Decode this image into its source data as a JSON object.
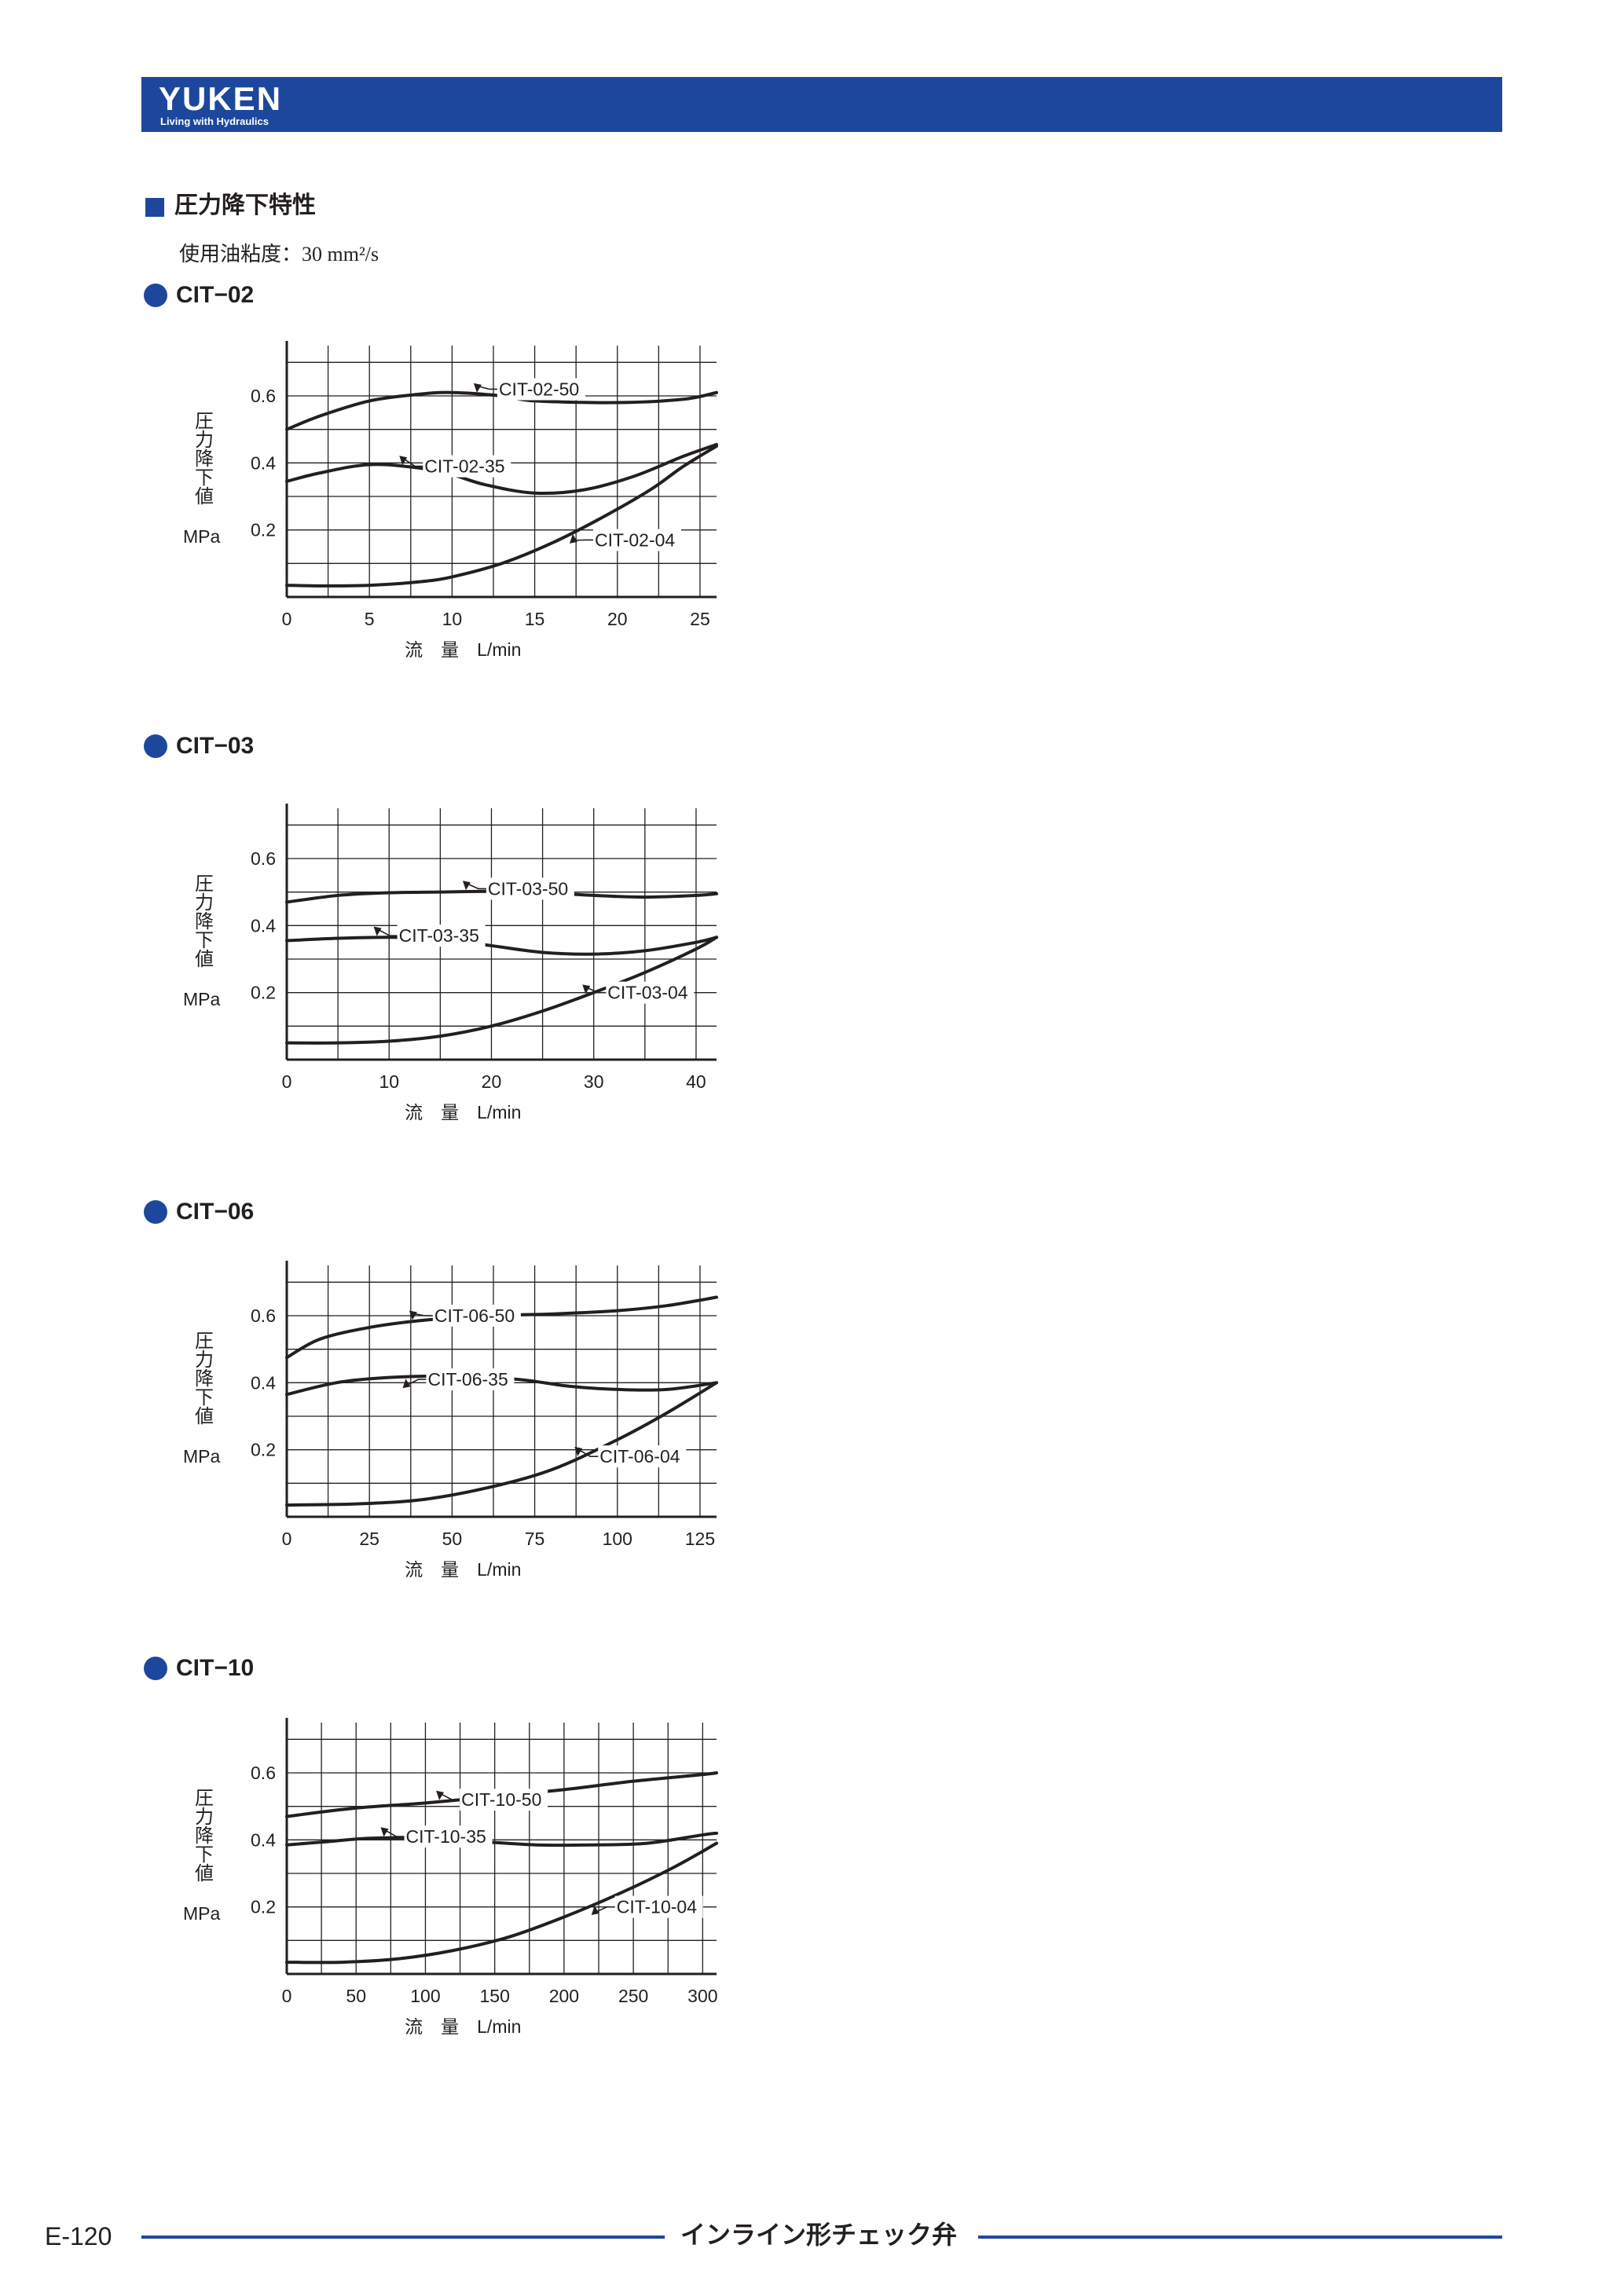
{
  "header": {
    "logo_text": "YUKEN",
    "tagline": "Living with Hydraulics",
    "brand_color": "#1c479c"
  },
  "section": {
    "title": "圧力降下特性",
    "viscosity_note": "使用油粘度：30 mm²/s"
  },
  "footer": {
    "page_number": "E-120",
    "title": "インライン形チェック弁"
  },
  "chart_data": [
    {
      "type": "line",
      "title": "CIT−02",
      "ylabel": "圧力降下値",
      "yunit": "MPa",
      "xlabel": "流 量 L/min",
      "xlim": [
        0,
        26
      ],
      "ylim": [
        0,
        0.75
      ],
      "xticks": [
        "0",
        "5",
        "10",
        "15",
        "20",
        "25"
      ],
      "yticks": [
        "0.2",
        "0.4",
        "0.6"
      ],
      "grid": true,
      "series": [
        {
          "name": "CIT-02-50",
          "x": [
            0,
            2,
            5,
            8,
            10,
            13,
            15,
            20,
            24,
            26
          ],
          "y": [
            0.5,
            0.54,
            0.585,
            0.605,
            0.61,
            0.6,
            0.585,
            0.58,
            0.59,
            0.61
          ]
        },
        {
          "name": "CIT-02-35",
          "x": [
            0,
            2,
            5,
            8,
            10,
            12,
            15,
            18,
            21,
            24,
            26
          ],
          "y": [
            0.345,
            0.37,
            0.395,
            0.385,
            0.365,
            0.335,
            0.31,
            0.32,
            0.36,
            0.42,
            0.455
          ]
        },
        {
          "name": "CIT-02-04",
          "x": [
            0,
            2,
            5,
            8,
            10,
            13,
            16,
            19,
            22,
            24,
            26
          ],
          "y": [
            0.035,
            0.033,
            0.035,
            0.045,
            0.06,
            0.1,
            0.16,
            0.235,
            0.32,
            0.39,
            0.45
          ]
        }
      ],
      "annotations": [
        {
          "text": "CIT-02-50",
          "x": 11.5,
          "y": 0.62
        },
        {
          "text": "CIT-02-35",
          "x": 7.0,
          "y": 0.39
        },
        {
          "text": "CIT-02-04",
          "x": 17.3,
          "y": 0.17
        }
      ]
    },
    {
      "type": "line",
      "title": "CIT−03",
      "ylabel": "圧力降下値",
      "yunit": "MPa",
      "xlabel": "流 量 L/min",
      "xlim": [
        0,
        42
      ],
      "ylim": [
        0,
        0.75
      ],
      "xticks": [
        "0",
        "10",
        "20",
        "30",
        "40"
      ],
      "yticks": [
        "0.2",
        "0.4",
        "0.6"
      ],
      "grid": true,
      "series": [
        {
          "name": "CIT-03-50",
          "x": [
            0,
            5,
            10,
            15,
            20,
            25,
            30,
            35,
            40,
            42
          ],
          "y": [
            0.47,
            0.49,
            0.498,
            0.5,
            0.502,
            0.498,
            0.49,
            0.485,
            0.49,
            0.495
          ]
        },
        {
          "name": "CIT-03-35",
          "x": [
            0,
            5,
            10,
            15,
            20,
            25,
            30,
            35,
            40,
            42
          ],
          "y": [
            0.355,
            0.362,
            0.365,
            0.36,
            0.34,
            0.32,
            0.315,
            0.325,
            0.35,
            0.365
          ]
        },
        {
          "name": "CIT-03-04",
          "x": [
            0,
            5,
            10,
            15,
            20,
            25,
            30,
            35,
            40,
            42
          ],
          "y": [
            0.05,
            0.05,
            0.055,
            0.07,
            0.1,
            0.145,
            0.2,
            0.26,
            0.33,
            0.365
          ]
        }
      ],
      "annotations": [
        {
          "text": "CIT-03-50",
          "x": 17.5,
          "y": 0.51
        },
        {
          "text": "CIT-03-35",
          "x": 8.8,
          "y": 0.37
        },
        {
          "text": "CIT-03-04",
          "x": 29.2,
          "y": 0.2
        }
      ]
    },
    {
      "type": "line",
      "title": "CIT−06",
      "ylabel": "圧力降下値",
      "yunit": "MPa",
      "xlabel": "流 量 L/min",
      "xlim": [
        0,
        130
      ],
      "ylim": [
        0,
        0.75
      ],
      "xticks": [
        "0",
        "25",
        "50",
        "75",
        "100",
        "125"
      ],
      "yticks": [
        "0.2",
        "0.4",
        "0.6"
      ],
      "grid": true,
      "series": [
        {
          "name": "CIT-06-50",
          "x": [
            0,
            10,
            25,
            40,
            60,
            80,
            100,
            115,
            130
          ],
          "y": [
            0.475,
            0.53,
            0.565,
            0.585,
            0.6,
            0.605,
            0.615,
            0.63,
            0.655
          ]
        },
        {
          "name": "CIT-06-35",
          "x": [
            0,
            15,
            30,
            50,
            70,
            85,
            100,
            115,
            130
          ],
          "y": [
            0.365,
            0.4,
            0.415,
            0.42,
            0.41,
            0.39,
            0.38,
            0.38,
            0.4
          ]
        },
        {
          "name": "CIT-06-04",
          "x": [
            0,
            20,
            40,
            60,
            80,
            100,
            115,
            130
          ],
          "y": [
            0.035,
            0.038,
            0.05,
            0.085,
            0.14,
            0.23,
            0.31,
            0.4
          ]
        }
      ],
      "annotations": [
        {
          "text": "CIT-06-50",
          "x": 38,
          "y": 0.6
        },
        {
          "text": "CIT-06-35",
          "x": 36,
          "y": 0.41
        },
        {
          "text": "CIT-06-04",
          "x": 88,
          "y": 0.18
        }
      ]
    },
    {
      "type": "line",
      "title": "CIT−10",
      "ylabel": "圧力降下値",
      "yunit": "MPa",
      "xlabel": "流 量 L/min",
      "xlim": [
        0,
        310
      ],
      "ylim": [
        0,
        0.75
      ],
      "xticks": [
        "0",
        "50",
        "100",
        "150",
        "200",
        "250",
        "300"
      ],
      "yticks": [
        "0.2",
        "0.4",
        "0.6"
      ],
      "grid": true,
      "series": [
        {
          "name": "CIT-10-50",
          "x": [
            0,
            50,
            100,
            150,
            200,
            250,
            300,
            310
          ],
          "y": [
            0.47,
            0.495,
            0.51,
            0.53,
            0.55,
            0.575,
            0.595,
            0.6
          ]
        },
        {
          "name": "CIT-10-35",
          "x": [
            0,
            30,
            60,
            100,
            140,
            180,
            220,
            260,
            300,
            310
          ],
          "y": [
            0.385,
            0.395,
            0.405,
            0.405,
            0.395,
            0.385,
            0.385,
            0.39,
            0.415,
            0.42
          ]
        },
        {
          "name": "CIT-10-04",
          "x": [
            0,
            40,
            80,
            120,
            160,
            200,
            240,
            280,
            310
          ],
          "y": [
            0.035,
            0.035,
            0.045,
            0.07,
            0.11,
            0.17,
            0.24,
            0.32,
            0.39
          ]
        }
      ],
      "annotations": [
        {
          "text": "CIT-10-50",
          "x": 110,
          "y": 0.52
        },
        {
          "text": "CIT-10-35",
          "x": 70,
          "y": 0.41
        },
        {
          "text": "CIT-10-04",
          "x": 222,
          "y": 0.2
        }
      ]
    }
  ]
}
